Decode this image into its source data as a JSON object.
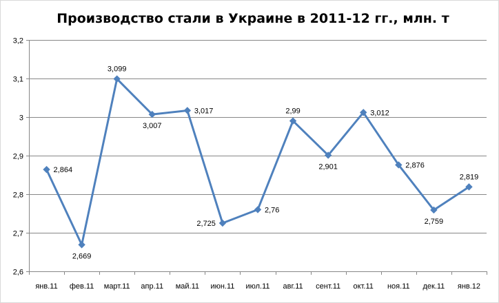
{
  "chart_data": {
    "type": "line",
    "title": "Производство стали в Украине в 2011-12 гг., млн. т",
    "xlabel": "",
    "ylabel": "",
    "categories": [
      "янв.11",
      "фев.11",
      "март.11",
      "апр.11",
      "май.11",
      "июн.11",
      "июл.11",
      "авг.11",
      "сент.11",
      "окт.11",
      "ноя.11",
      "дек.11",
      "янв.12"
    ],
    "series": [
      {
        "values": [
          2.864,
          2.669,
          3.099,
          3.007,
          3.017,
          2.725,
          2.76,
          2.99,
          2.901,
          3.012,
          2.876,
          2.759,
          2.819
        ],
        "labels": [
          "2,864",
          "2,669",
          "3,099",
          "3,007",
          "3,017",
          "2,725",
          "2,76",
          "2,99",
          "2,901",
          "3,012",
          "2,876",
          "2,759",
          "2,819"
        ],
        "label_positions": [
          "right",
          "below",
          "above",
          "below",
          "right",
          "left",
          "right",
          "above",
          "below",
          "right",
          "right",
          "below",
          "above"
        ],
        "color": "#4f81bd"
      }
    ],
    "ylim": [
      2.6,
      3.2
    ],
    "yticks": [
      2.6,
      2.7,
      2.8,
      2.9,
      3.0,
      3.1,
      3.2
    ],
    "ytick_labels": [
      "2,6",
      "2,7",
      "2,8",
      "2,9",
      "3",
      "3,1",
      "3,2"
    ],
    "grid": true,
    "legend": "none",
    "marker": "diamond"
  }
}
